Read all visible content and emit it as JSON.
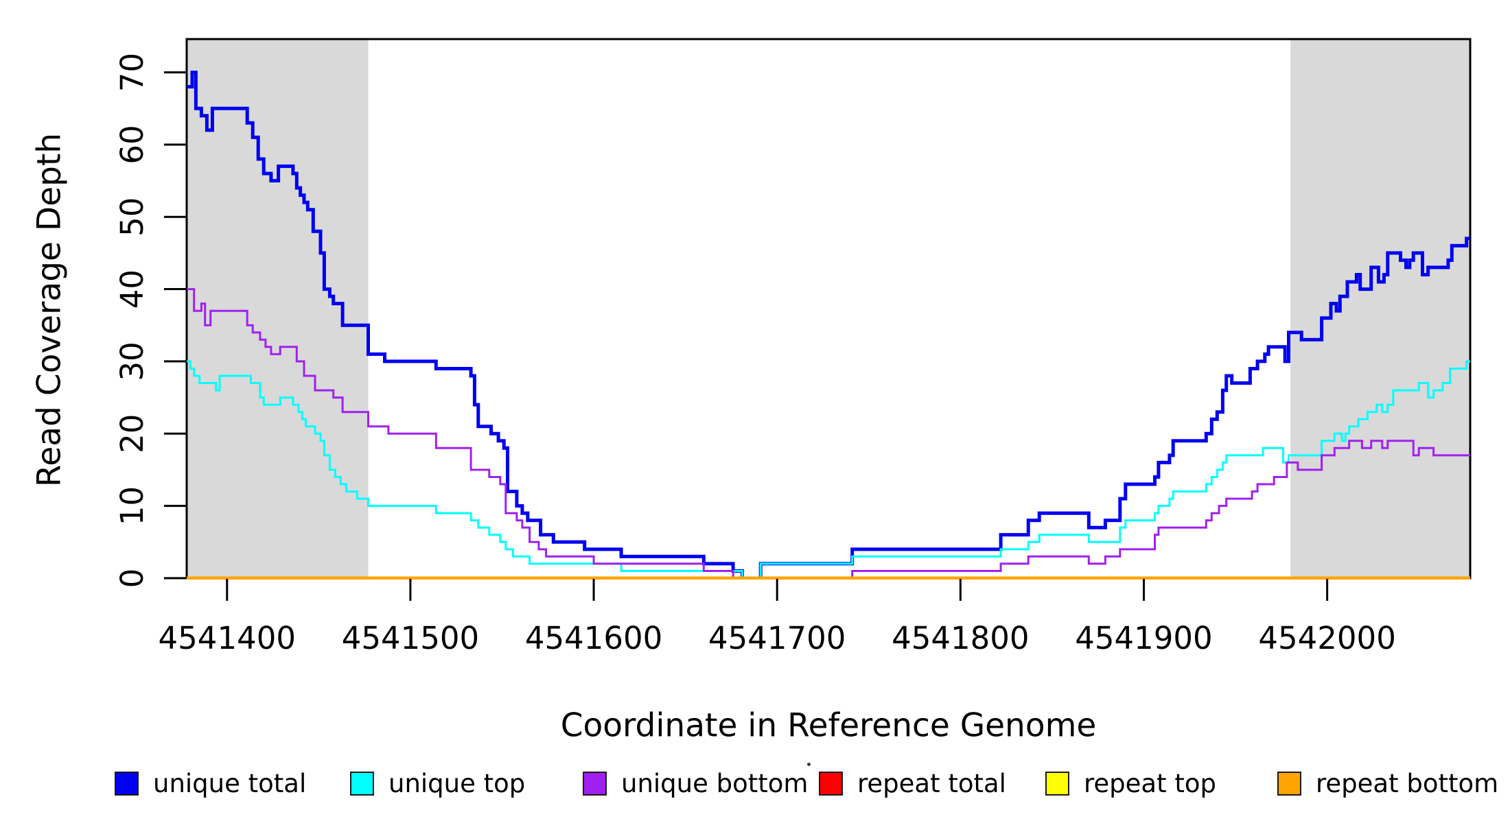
{
  "chart_data": {
    "type": "line",
    "subtype": "step",
    "title": "",
    "xlabel": "Coordinate in Reference Genome",
    "ylabel": "Read Coverage Depth",
    "xlim": [
      4541378,
      4542078
    ],
    "ylim": [
      0,
      74.6
    ],
    "x_ticks": [
      4541400,
      4541500,
      4541600,
      4541700,
      4541800,
      4541900,
      4542000
    ],
    "y_ticks": [
      0,
      10,
      20,
      30,
      40,
      50,
      60,
      70
    ],
    "grid": false,
    "legend_position": "bottom",
    "colors": {
      "shading": "#D9D9D9",
      "axis": "#000000",
      "background": "#FFFFFF"
    },
    "shaded_regions": [
      {
        "x0": 4541378,
        "x1": 4541477,
        "color": "#D9D9D9"
      },
      {
        "x0": 4541980,
        "x1": 4542078,
        "color": "#D9D9D9"
      }
    ],
    "series": [
      {
        "name": "unique total",
        "color": "#0000F0",
        "width": 5,
        "points": [
          [
            4541378,
            68
          ],
          [
            4541381,
            70
          ],
          [
            4541383,
            65
          ],
          [
            4541386,
            64
          ],
          [
            4541389,
            62
          ],
          [
            4541392,
            65
          ],
          [
            4541411,
            63
          ],
          [
            4541414,
            61
          ],
          [
            4541417,
            58
          ],
          [
            4541420,
            56
          ],
          [
            4541424,
            55
          ],
          [
            4541428,
            57
          ],
          [
            4541436,
            56
          ],
          [
            4541438,
            54
          ],
          [
            4541440,
            53
          ],
          [
            4541442,
            52
          ],
          [
            4541444,
            51
          ],
          [
            4541447,
            48
          ],
          [
            4541451,
            45
          ],
          [
            4541453,
            40
          ],
          [
            4541456,
            39
          ],
          [
            4541458,
            38
          ],
          [
            4541463,
            35
          ],
          [
            4541477,
            31
          ],
          [
            4541486,
            30
          ],
          [
            4541514,
            29
          ],
          [
            4541533,
            28
          ],
          [
            4541535,
            24
          ],
          [
            4541537,
            21
          ],
          [
            4541544,
            20
          ],
          [
            4541548,
            19
          ],
          [
            4541551,
            18
          ],
          [
            4541553,
            12
          ],
          [
            4541558,
            10
          ],
          [
            4541561,
            9
          ],
          [
            4541564,
            8
          ],
          [
            4541571,
            6
          ],
          [
            4541578,
            5
          ],
          [
            4541595,
            4
          ],
          [
            4541615,
            3
          ],
          [
            4541660,
            2
          ],
          [
            4541676,
            1
          ],
          [
            4541681,
            0
          ],
          [
            4541691,
            2
          ],
          [
            4541741,
            4
          ],
          [
            4541822,
            6
          ],
          [
            4541837,
            8
          ],
          [
            4541843,
            9
          ],
          [
            4541870,
            7
          ],
          [
            4541879,
            8
          ],
          [
            4541887,
            11
          ],
          [
            4541890,
            13
          ],
          [
            4541906,
            14
          ],
          [
            4541908,
            16
          ],
          [
            4541914,
            17
          ],
          [
            4541916,
            19
          ],
          [
            4541934,
            20
          ],
          [
            4541937,
            22
          ],
          [
            4541940,
            23
          ],
          [
            4541943,
            26
          ],
          [
            4541945,
            28
          ],
          [
            4541948,
            27
          ],
          [
            4541958,
            29
          ],
          [
            4541962,
            30
          ],
          [
            4541966,
            31
          ],
          [
            4541968,
            32
          ],
          [
            4541977,
            30
          ],
          [
            4541979,
            34
          ],
          [
            4541986,
            33
          ],
          [
            4541997,
            36
          ],
          [
            4542002,
            38
          ],
          [
            4542005,
            37
          ],
          [
            4542007,
            39
          ],
          [
            4542011,
            41
          ],
          [
            4542016,
            42
          ],
          [
            4542018,
            40
          ],
          [
            4542024,
            43
          ],
          [
            4542028,
            41
          ],
          [
            4542031,
            42
          ],
          [
            4542033,
            45
          ],
          [
            4542040,
            44
          ],
          [
            4542043,
            43
          ],
          [
            4542045,
            44
          ],
          [
            4542047,
            45
          ],
          [
            4542052,
            42
          ],
          [
            4542055,
            43
          ],
          [
            4542066,
            44
          ],
          [
            4542068,
            46
          ],
          [
            4542076,
            47
          ]
        ]
      },
      {
        "name": "unique top",
        "color": "#00FFFF",
        "width": 3,
        "points": [
          [
            4541378,
            30
          ],
          [
            4541380,
            29
          ],
          [
            4541382,
            28
          ],
          [
            4541385,
            27
          ],
          [
            4541394,
            26
          ],
          [
            4541396,
            28
          ],
          [
            4541413,
            27
          ],
          [
            4541418,
            25
          ],
          [
            4541420,
            24
          ],
          [
            4541429,
            25
          ],
          [
            4541436,
            24
          ],
          [
            4541439,
            23
          ],
          [
            4541441,
            22
          ],
          [
            4541443,
            21
          ],
          [
            4541448,
            20
          ],
          [
            4541451,
            19
          ],
          [
            4541453,
            17
          ],
          [
            4541456,
            15
          ],
          [
            4541459,
            14
          ],
          [
            4541462,
            13
          ],
          [
            4541465,
            12
          ],
          [
            4541471,
            11
          ],
          [
            4541477,
            10
          ],
          [
            4541514,
            9
          ],
          [
            4541533,
            8
          ],
          [
            4541537,
            7
          ],
          [
            4541543,
            6
          ],
          [
            4541549,
            5
          ],
          [
            4541552,
            4
          ],
          [
            4541556,
            3
          ],
          [
            4541565,
            2
          ],
          [
            4541615,
            1
          ],
          [
            4541681,
            0
          ],
          [
            4541691,
            2
          ],
          [
            4541741,
            3
          ],
          [
            4541822,
            4
          ],
          [
            4541837,
            5
          ],
          [
            4541843,
            6
          ],
          [
            4541870,
            5
          ],
          [
            4541887,
            7
          ],
          [
            4541890,
            8
          ],
          [
            4541906,
            9
          ],
          [
            4541908,
            10
          ],
          [
            4541914,
            11
          ],
          [
            4541916,
            12
          ],
          [
            4541934,
            13
          ],
          [
            4541937,
            14
          ],
          [
            4541940,
            15
          ],
          [
            4541943,
            16
          ],
          [
            4541945,
            17
          ],
          [
            4541965,
            18
          ],
          [
            4541976,
            16
          ],
          [
            4541979,
            17
          ],
          [
            4541997,
            19
          ],
          [
            4542004,
            20
          ],
          [
            4542008,
            19
          ],
          [
            4542010,
            20
          ],
          [
            4542012,
            21
          ],
          [
            4542017,
            22
          ],
          [
            4542022,
            23
          ],
          [
            4542027,
            24
          ],
          [
            4542030,
            23
          ],
          [
            4542033,
            24
          ],
          [
            4542036,
            26
          ],
          [
            4542050,
            27
          ],
          [
            4542055,
            25
          ],
          [
            4542058,
            26
          ],
          [
            4542063,
            27
          ],
          [
            4542067,
            29
          ],
          [
            4542076,
            30
          ]
        ]
      },
      {
        "name": "unique bottom",
        "color": "#A020F0",
        "width": 3,
        "points": [
          [
            4541378,
            40
          ],
          [
            4541382,
            37
          ],
          [
            4541386,
            38
          ],
          [
            4541388,
            35
          ],
          [
            4541391,
            37
          ],
          [
            4541411,
            35
          ],
          [
            4541414,
            34
          ],
          [
            4541418,
            33
          ],
          [
            4541421,
            32
          ],
          [
            4541424,
            31
          ],
          [
            4541429,
            32
          ],
          [
            4541438,
            30
          ],
          [
            4541442,
            28
          ],
          [
            4541448,
            26
          ],
          [
            4541458,
            25
          ],
          [
            4541463,
            23
          ],
          [
            4541477,
            21
          ],
          [
            4541488,
            20
          ],
          [
            4541514,
            18
          ],
          [
            4541533,
            15
          ],
          [
            4541543,
            14
          ],
          [
            4541549,
            13
          ],
          [
            4541552,
            9
          ],
          [
            4541558,
            8
          ],
          [
            4541561,
            7
          ],
          [
            4541565,
            5
          ],
          [
            4541570,
            4
          ],
          [
            4541574,
            3
          ],
          [
            4541600,
            2
          ],
          [
            4541660,
            1
          ],
          [
            4541676,
            0
          ],
          [
            4541741,
            1
          ],
          [
            4541822,
            2
          ],
          [
            4541837,
            3
          ],
          [
            4541870,
            2
          ],
          [
            4541879,
            3
          ],
          [
            4541887,
            4
          ],
          [
            4541906,
            6
          ],
          [
            4541908,
            7
          ],
          [
            4541934,
            8
          ],
          [
            4541937,
            9
          ],
          [
            4541941,
            10
          ],
          [
            4541945,
            11
          ],
          [
            4541959,
            12
          ],
          [
            4541962,
            13
          ],
          [
            4541971,
            14
          ],
          [
            4541978,
            16
          ],
          [
            4541984,
            15
          ],
          [
            4541997,
            17
          ],
          [
            4542004,
            18
          ],
          [
            4542012,
            19
          ],
          [
            4542019,
            18
          ],
          [
            4542024,
            19
          ],
          [
            4542030,
            18
          ],
          [
            4542033,
            19
          ],
          [
            4542047,
            17
          ],
          [
            4542050,
            18
          ],
          [
            4542058,
            17
          ]
        ]
      },
      {
        "name": "repeat total",
        "color": "#FF0000",
        "width": 5,
        "points": [
          [
            4541378,
            0
          ]
        ]
      },
      {
        "name": "repeat top",
        "color": "#FFFF00",
        "width": 4,
        "points": [
          [
            4541378,
            0
          ]
        ]
      },
      {
        "name": "repeat bottom",
        "color": "#FFA500",
        "width": 5,
        "points": [
          [
            4541378,
            0
          ]
        ]
      }
    ],
    "legend": {
      "items": [
        {
          "label": "unique total",
          "color": "#0000F0"
        },
        {
          "label": "unique top",
          "color": "#00FFFF"
        },
        {
          "label": "unique bottom",
          "color": "#A020F0"
        },
        {
          "label": "repeat total",
          "color": "#FF0000"
        },
        {
          "label": "repeat top",
          "color": "#FFFF00"
        },
        {
          "label": "repeat bottom",
          "color": "#FFA500"
        }
      ],
      "stray_dot": true
    }
  }
}
